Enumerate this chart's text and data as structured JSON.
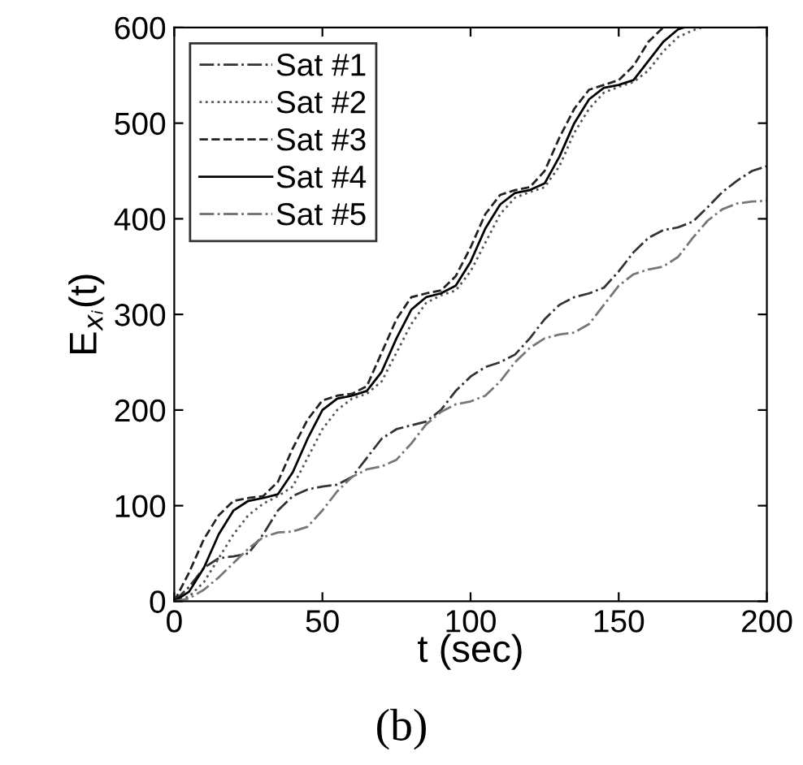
{
  "chart_data": {
    "type": "line",
    "xlabel": "t (sec)",
    "ylabel": "E$_{xᵢ}$(t)",
    "annotations": [
      "(b)"
    ],
    "xlim": [
      0,
      200
    ],
    "ylim": [
      0,
      600
    ],
    "xticks": [
      0,
      50,
      100,
      150,
      200
    ],
    "yticks": [
      0,
      100,
      200,
      300,
      400,
      500,
      600
    ],
    "grid": false,
    "legend": "top left",
    "marker": "none",
    "series": [
      {
        "name": "Sat #1",
        "color": "#333333",
        "line_style": "dashdot",
        "x": [
          0,
          5,
          10,
          15,
          20,
          25,
          30,
          35,
          40,
          45,
          50,
          55,
          60,
          65,
          70,
          75,
          80,
          85,
          90,
          95,
          100,
          105,
          110,
          115,
          120,
          125,
          130,
          135,
          140,
          145,
          150,
          155,
          160,
          165,
          170,
          175,
          180,
          185,
          190,
          195,
          200
        ],
        "values": [
          0,
          15,
          35,
          45,
          47,
          50,
          70,
          95,
          110,
          117,
          120,
          122,
          130,
          150,
          170,
          180,
          184,
          188,
          200,
          220,
          235,
          245,
          250,
          258,
          275,
          295,
          310,
          318,
          322,
          328,
          345,
          365,
          380,
          388,
          391,
          397,
          412,
          428,
          440,
          450,
          455
        ]
      },
      {
        "name": "Sat #2",
        "color": "#555555",
        "line_style": "dotted",
        "x": [
          0,
          5,
          10,
          15,
          20,
          25,
          30,
          35,
          40,
          45,
          50,
          55,
          60,
          65,
          70,
          75,
          80,
          85,
          90,
          95,
          100,
          105,
          110,
          115,
          120,
          125,
          130,
          135,
          140,
          145,
          150,
          155,
          160,
          165,
          170,
          175,
          178
        ],
        "values": [
          0,
          5,
          20,
          45,
          70,
          90,
          102,
          110,
          120,
          150,
          180,
          200,
          212,
          217,
          230,
          260,
          290,
          312,
          320,
          325,
          345,
          375,
          405,
          422,
          428,
          433,
          455,
          490,
          515,
          532,
          538,
          543,
          555,
          575,
          590,
          597,
          600
        ]
      },
      {
        "name": "Sat #3",
        "color": "#222222",
        "line_style": "dashed",
        "x": [
          0,
          5,
          10,
          15,
          20,
          25,
          30,
          35,
          40,
          45,
          50,
          55,
          60,
          65,
          70,
          75,
          80,
          85,
          90,
          95,
          100,
          105,
          110,
          115,
          120,
          125,
          130,
          135,
          140,
          145,
          150,
          155,
          160,
          165
        ],
        "values": [
          0,
          30,
          65,
          90,
          105,
          108,
          110,
          125,
          160,
          190,
          210,
          215,
          217,
          225,
          260,
          295,
          318,
          322,
          325,
          340,
          370,
          405,
          425,
          430,
          433,
          450,
          485,
          515,
          535,
          540,
          545,
          560,
          585,
          600
        ]
      },
      {
        "name": "Sat #4",
        "color": "#000000",
        "line_style": "solid",
        "x": [
          0,
          5,
          10,
          15,
          20,
          25,
          30,
          35,
          40,
          45,
          50,
          55,
          60,
          65,
          70,
          75,
          80,
          85,
          90,
          95,
          100,
          105,
          110,
          115,
          120,
          125,
          130,
          135,
          140,
          145,
          150,
          155,
          160,
          165,
          170,
          172
        ],
        "values": [
          0,
          10,
          35,
          70,
          95,
          105,
          108,
          112,
          135,
          170,
          200,
          212,
          215,
          220,
          240,
          275,
          305,
          318,
          322,
          330,
          355,
          390,
          415,
          427,
          430,
          437,
          465,
          500,
          525,
          537,
          540,
          545,
          565,
          585,
          598,
          600
        ]
      },
      {
        "name": "Sat #5",
        "color": "#777777",
        "line_style": "dashdot",
        "x": [
          0,
          5,
          10,
          15,
          20,
          25,
          30,
          35,
          40,
          45,
          50,
          55,
          60,
          65,
          70,
          75,
          80,
          85,
          90,
          95,
          100,
          105,
          110,
          115,
          120,
          125,
          130,
          135,
          140,
          145,
          150,
          155,
          160,
          165,
          170,
          175,
          180,
          185,
          190,
          195,
          200
        ],
        "values": [
          0,
          3,
          12,
          25,
          40,
          55,
          67,
          72,
          73,
          78,
          95,
          115,
          130,
          138,
          141,
          148,
          165,
          185,
          198,
          206,
          209,
          215,
          230,
          250,
          265,
          275,
          279,
          281,
          290,
          310,
          330,
          342,
          347,
          350,
          360,
          380,
          398,
          410,
          416,
          418,
          419
        ]
      }
    ]
  }
}
